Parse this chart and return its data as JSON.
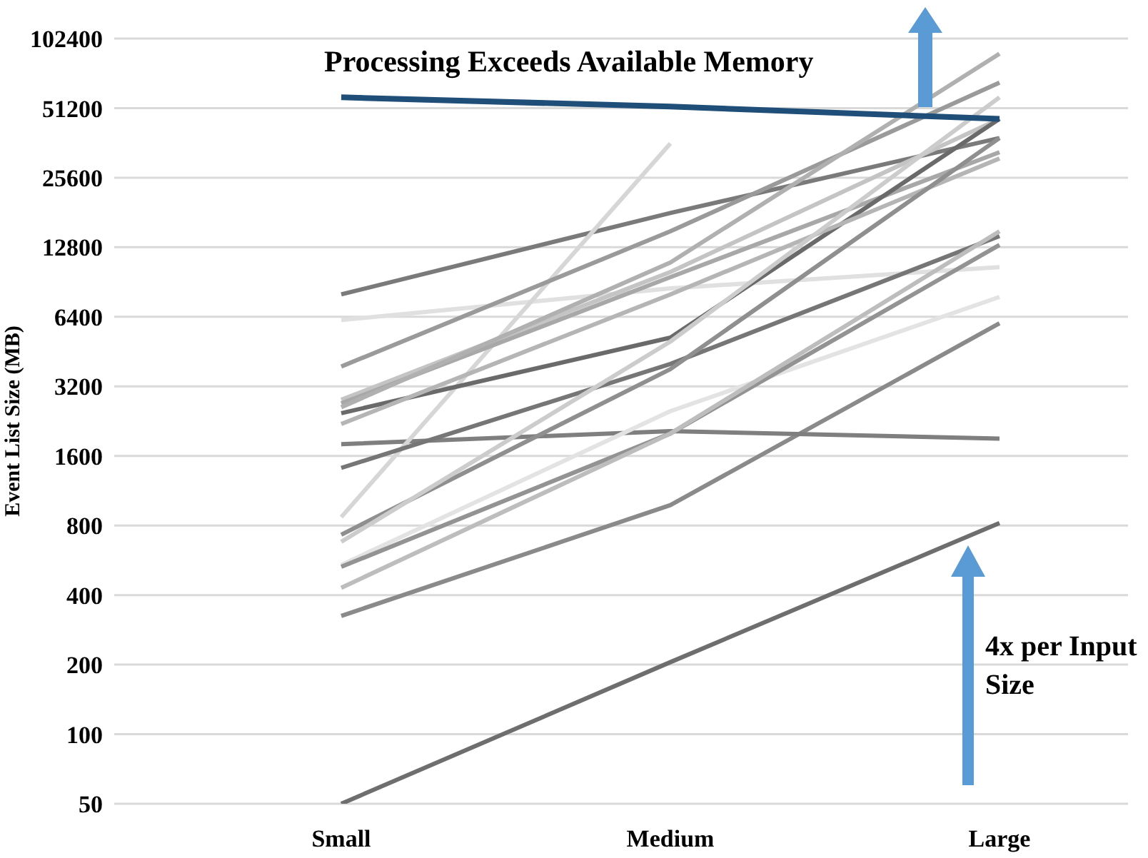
{
  "chart_data": {
    "type": "line",
    "ylabel": "Event List Size (MB)",
    "categories": [
      "Small",
      "Medium",
      "Large"
    ],
    "log": "y",
    "ylim": [
      50,
      102400
    ],
    "yticks": [
      50,
      100,
      200,
      400,
      800,
      1600,
      3200,
      6400,
      12800,
      25600,
      51200,
      102400
    ],
    "grid": "y",
    "marker": "none",
    "annotations": [
      "4x per Input Size"
    ],
    "series": [
      {
        "color": "#6e6e6e",
        "values": [
          50,
          205,
          820
        ]
      },
      {
        "color": "#8a8a8a",
        "values": [
          325,
          980,
          6000
        ]
      },
      {
        "color": "#7f7f7f",
        "values": [
          1800,
          2050,
          1900
        ]
      },
      {
        "color": "#7a7a7a",
        "values": [
          8000,
          18000,
          38000
        ]
      },
      {
        "color": "#e0e0e0",
        "values": [
          6200,
          8500,
          10500
        ]
      },
      {
        "color": "#d6d6d6",
        "values": [
          870,
          36000,
          null
        ]
      },
      {
        "color": "#9a9a9a",
        "values": [
          3900,
          15000,
          66000
        ]
      },
      {
        "color": "#c4c4c4",
        "values": [
          2800,
          10000,
          46000
        ]
      },
      {
        "color": "#a8a8a8",
        "values": [
          2700,
          9500,
          33000
        ]
      },
      {
        "color": "#6a6a6a",
        "values": [
          2450,
          5200,
          46000
        ]
      },
      {
        "color": "#b5b5b5",
        "values": [
          2200,
          8000,
          31000
        ]
      },
      {
        "color": "#767676",
        "values": [
          1420,
          4000,
          14300
        ]
      },
      {
        "color": "#8f8f8f",
        "values": [
          730,
          3800,
          38000
        ]
      },
      {
        "color": "#e3e3e3",
        "values": [
          540,
          2500,
          7800
        ]
      },
      {
        "color": "#939393",
        "values": [
          530,
          2000,
          13100
        ]
      },
      {
        "color": "#cccccc",
        "values": [
          680,
          5000,
          57000
        ]
      },
      {
        "color": "#bdbdbd",
        "values": [
          430,
          2000,
          15000
        ]
      },
      {
        "color": "#b0b0b0",
        "values": [
          2600,
          11000,
          88000
        ]
      },
      {
        "name": "Processing Exceeds Available Memory",
        "color": "#1f4e79",
        "values": [
          57000,
          52000,
          46000
        ]
      }
    ]
  }
}
